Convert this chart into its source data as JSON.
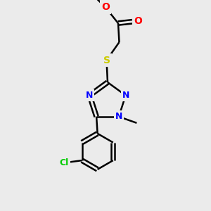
{
  "background_color": "#ebebeb",
  "bond_color": "#000000",
  "nitrogen_color": "#0000ff",
  "oxygen_color": "#ff0000",
  "sulfur_color": "#cccc00",
  "chlorine_color": "#00cc00",
  "line_width": 1.8,
  "fig_width": 3.0,
  "fig_height": 3.0,
  "dpi": 100,
  "xlim": [
    0,
    10
  ],
  "ylim": [
    0,
    10
  ]
}
